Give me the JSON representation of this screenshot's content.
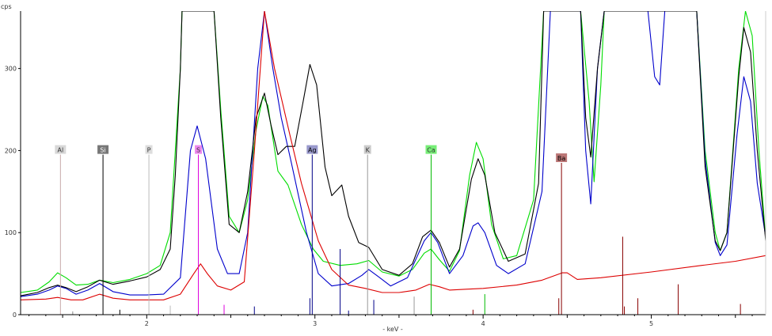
{
  "chart_data": {
    "type": "line",
    "xlabel": "- keV -",
    "ylabel": "cps",
    "xlim": [
      1.25,
      5.68
    ],
    "ylim": [
      0,
      370
    ],
    "x_ticks": [
      2,
      3,
      4,
      5
    ],
    "y_ticks": [
      0,
      100,
      200,
      300
    ],
    "grid": false,
    "series": [
      {
        "color": "#00dd00",
        "points": [
          [
            1.25,
            27
          ],
          [
            1.35,
            30
          ],
          [
            1.42,
            40
          ],
          [
            1.47,
            51
          ],
          [
            1.52,
            45
          ],
          [
            1.58,
            36
          ],
          [
            1.65,
            37
          ],
          [
            1.72,
            42
          ],
          [
            1.8,
            39
          ],
          [
            1.9,
            43
          ],
          [
            2.0,
            50
          ],
          [
            2.08,
            60
          ],
          [
            2.14,
            100
          ],
          [
            2.17,
            200
          ],
          [
            2.2,
            300
          ],
          [
            2.21,
            370
          ],
          [
            2.4,
            370
          ],
          [
            2.44,
            250
          ],
          [
            2.49,
            120
          ],
          [
            2.55,
            100
          ],
          [
            2.6,
            140
          ],
          [
            2.65,
            225
          ],
          [
            2.69,
            266
          ],
          [
            2.72,
            255
          ],
          [
            2.78,
            175
          ],
          [
            2.84,
            158
          ],
          [
            2.92,
            110
          ],
          [
            2.99,
            80
          ],
          [
            3.05,
            65
          ],
          [
            3.15,
            60
          ],
          [
            3.25,
            62
          ],
          [
            3.32,
            66
          ],
          [
            3.4,
            52
          ],
          [
            3.5,
            47
          ],
          [
            3.58,
            55
          ],
          [
            3.65,
            75
          ],
          [
            3.69,
            80
          ],
          [
            3.74,
            67
          ],
          [
            3.8,
            53
          ],
          [
            3.86,
            78
          ],
          [
            3.92,
            170
          ],
          [
            3.96,
            210
          ],
          [
            4.0,
            190
          ],
          [
            4.05,
            110
          ],
          [
            4.12,
            68
          ],
          [
            4.2,
            72
          ],
          [
            4.3,
            140
          ],
          [
            4.36,
            370
          ],
          [
            4.58,
            370
          ],
          [
            4.63,
            260
          ],
          [
            4.66,
            162
          ],
          [
            4.7,
            280
          ],
          [
            4.72,
            370
          ],
          [
            5.27,
            370
          ],
          [
            5.32,
            200
          ],
          [
            5.38,
            100
          ],
          [
            5.41,
            78
          ],
          [
            5.45,
            100
          ],
          [
            5.52,
            300
          ],
          [
            5.56,
            370
          ],
          [
            5.6,
            340
          ],
          [
            5.64,
            200
          ],
          [
            5.68,
            92
          ]
        ]
      },
      {
        "color": "#0000cc",
        "points": [
          [
            1.25,
            22
          ],
          [
            1.35,
            25
          ],
          [
            1.42,
            30
          ],
          [
            1.47,
            35
          ],
          [
            1.52,
            32
          ],
          [
            1.58,
            25
          ],
          [
            1.65,
            30
          ],
          [
            1.72,
            38
          ],
          [
            1.8,
            28
          ],
          [
            1.9,
            24
          ],
          [
            2.0,
            24
          ],
          [
            2.1,
            25
          ],
          [
            2.2,
            45
          ],
          [
            2.26,
            200
          ],
          [
            2.3,
            230
          ],
          [
            2.35,
            190
          ],
          [
            2.42,
            80
          ],
          [
            2.48,
            50
          ],
          [
            2.55,
            50
          ],
          [
            2.6,
            100
          ],
          [
            2.66,
            300
          ],
          [
            2.7,
            370
          ],
          [
            2.75,
            300
          ],
          [
            2.8,
            240
          ],
          [
            2.86,
            185
          ],
          [
            2.95,
            100
          ],
          [
            3.02,
            50
          ],
          [
            3.1,
            35
          ],
          [
            3.2,
            38
          ],
          [
            3.28,
            48
          ],
          [
            3.32,
            55
          ],
          [
            3.38,
            46
          ],
          [
            3.45,
            35
          ],
          [
            3.55,
            45
          ],
          [
            3.65,
            90
          ],
          [
            3.69,
            100
          ],
          [
            3.73,
            88
          ],
          [
            3.8,
            50
          ],
          [
            3.88,
            72
          ],
          [
            3.94,
            108
          ],
          [
            3.97,
            112
          ],
          [
            4.01,
            100
          ],
          [
            4.08,
            60
          ],
          [
            4.15,
            50
          ],
          [
            4.25,
            62
          ],
          [
            4.35,
            150
          ],
          [
            4.4,
            370
          ],
          [
            4.58,
            370
          ],
          [
            4.61,
            200
          ],
          [
            4.64,
            135
          ],
          [
            4.68,
            300
          ],
          [
            4.72,
            370
          ],
          [
            4.98,
            370
          ],
          [
            5.02,
            290
          ],
          [
            5.05,
            280
          ],
          [
            5.08,
            370
          ],
          [
            5.27,
            370
          ],
          [
            5.32,
            190
          ],
          [
            5.38,
            88
          ],
          [
            5.41,
            72
          ],
          [
            5.45,
            85
          ],
          [
            5.51,
            220
          ],
          [
            5.55,
            290
          ],
          [
            5.59,
            260
          ],
          [
            5.63,
            160
          ],
          [
            5.68,
            95
          ]
        ]
      },
      {
        "color": "#000000",
        "points": [
          [
            1.25,
            23
          ],
          [
            1.35,
            27
          ],
          [
            1.42,
            33
          ],
          [
            1.47,
            36
          ],
          [
            1.52,
            33
          ],
          [
            1.58,
            28
          ],
          [
            1.65,
            34
          ],
          [
            1.72,
            42
          ],
          [
            1.8,
            37
          ],
          [
            1.9,
            41
          ],
          [
            2.0,
            46
          ],
          [
            2.08,
            55
          ],
          [
            2.14,
            80
          ],
          [
            2.17,
            170
          ],
          [
            2.2,
            300
          ],
          [
            2.21,
            370
          ],
          [
            2.4,
            370
          ],
          [
            2.44,
            240
          ],
          [
            2.49,
            110
          ],
          [
            2.55,
            100
          ],
          [
            2.6,
            150
          ],
          [
            2.65,
            240
          ],
          [
            2.7,
            270
          ],
          [
            2.74,
            230
          ],
          [
            2.78,
            195
          ],
          [
            2.83,
            205
          ],
          [
            2.88,
            205
          ],
          [
            2.93,
            260
          ],
          [
            2.97,
            305
          ],
          [
            3.01,
            280
          ],
          [
            3.06,
            180
          ],
          [
            3.1,
            145
          ],
          [
            3.16,
            158
          ],
          [
            3.2,
            120
          ],
          [
            3.26,
            88
          ],
          [
            3.32,
            82
          ],
          [
            3.4,
            55
          ],
          [
            3.5,
            48
          ],
          [
            3.58,
            62
          ],
          [
            3.64,
            95
          ],
          [
            3.69,
            103
          ],
          [
            3.74,
            88
          ],
          [
            3.8,
            58
          ],
          [
            3.86,
            80
          ],
          [
            3.93,
            165
          ],
          [
            3.97,
            190
          ],
          [
            4.01,
            170
          ],
          [
            4.07,
            100
          ],
          [
            4.15,
            65
          ],
          [
            4.25,
            74
          ],
          [
            4.33,
            160
          ],
          [
            4.36,
            370
          ],
          [
            4.58,
            370
          ],
          [
            4.61,
            240
          ],
          [
            4.64,
            192
          ],
          [
            4.68,
            300
          ],
          [
            4.72,
            370
          ],
          [
            5.27,
            370
          ],
          [
            5.32,
            180
          ],
          [
            5.38,
            90
          ],
          [
            5.41,
            78
          ],
          [
            5.45,
            100
          ],
          [
            5.52,
            290
          ],
          [
            5.55,
            350
          ],
          [
            5.59,
            320
          ],
          [
            5.63,
            200
          ],
          [
            5.68,
            90
          ]
        ]
      },
      {
        "color": "#dd0000",
        "points": [
          [
            1.25,
            18
          ],
          [
            1.4,
            19
          ],
          [
            1.47,
            21
          ],
          [
            1.55,
            18
          ],
          [
            1.62,
            18
          ],
          [
            1.72,
            25
          ],
          [
            1.8,
            20
          ],
          [
            1.9,
            18
          ],
          [
            2.0,
            18
          ],
          [
            2.1,
            18
          ],
          [
            2.2,
            25
          ],
          [
            2.28,
            50
          ],
          [
            2.32,
            62
          ],
          [
            2.36,
            50
          ],
          [
            2.42,
            35
          ],
          [
            2.5,
            30
          ],
          [
            2.58,
            40
          ],
          [
            2.64,
            200
          ],
          [
            2.7,
            370
          ],
          [
            2.76,
            300
          ],
          [
            2.85,
            220
          ],
          [
            2.92,
            160
          ],
          [
            3.02,
            90
          ],
          [
            3.1,
            55
          ],
          [
            3.2,
            36
          ],
          [
            3.3,
            32
          ],
          [
            3.4,
            27
          ],
          [
            3.5,
            27
          ],
          [
            3.6,
            30
          ],
          [
            3.68,
            37
          ],
          [
            3.74,
            34
          ],
          [
            3.8,
            30
          ],
          [
            3.9,
            31
          ],
          [
            4.0,
            32
          ],
          [
            4.2,
            36
          ],
          [
            4.35,
            42
          ],
          [
            4.47,
            51
          ],
          [
            4.5,
            51
          ],
          [
            4.56,
            43
          ],
          [
            4.7,
            45
          ],
          [
            5.0,
            52
          ],
          [
            5.3,
            60
          ],
          [
            5.5,
            65
          ],
          [
            5.68,
            72
          ]
        ]
      }
    ],
    "element_markers": [
      {
        "label": "Al",
        "energy": 1.487,
        "height": 195,
        "color": "#c8a8a8",
        "box": "#d8d8d8",
        "text_color": "#333333"
      },
      {
        "label": "Si",
        "energy": 1.74,
        "height": 195,
        "color": "#000000",
        "box": "#777777",
        "text_color": "#ffffff"
      },
      {
        "label": "P",
        "energy": 2.013,
        "height": 195,
        "color": "#bbbbbb",
        "box": "#dddddd",
        "text_color": "#333333"
      },
      {
        "label": "S",
        "energy": 2.307,
        "height": 195,
        "color": "#dd00dd",
        "box": "#ee88ee",
        "text_color": "#333333"
      },
      {
        "label": "Ag",
        "energy": 2.984,
        "height": 195,
        "color": "#000088",
        "box": "#9999cc",
        "text_color": "#000000"
      },
      {
        "label": "K",
        "energy": 3.313,
        "height": 195,
        "color": "#999999",
        "box": "#cccccc",
        "text_color": "#333333"
      },
      {
        "label": "Ca",
        "energy": 3.691,
        "height": 195,
        "color": "#00bb00",
        "box": "#77ee77",
        "text_color": "#333333"
      },
      {
        "label": "Ba",
        "energy": 4.466,
        "height": 185,
        "color": "#880000",
        "box": "#bb7777",
        "text_color": "#000000"
      }
    ],
    "line_stubs": [
      {
        "energy": 1.56,
        "height": 4,
        "color": "#8a8a8a"
      },
      {
        "energy": 1.84,
        "height": 6,
        "color": "#000000"
      },
      {
        "energy": 2.14,
        "height": 11,
        "color": "#bbbbbb"
      },
      {
        "energy": 2.46,
        "height": 12,
        "color": "#dd00dd"
      },
      {
        "energy": 2.64,
        "height": 10,
        "color": "#000088"
      },
      {
        "energy": 2.97,
        "height": 20,
        "color": "#000088"
      },
      {
        "energy": 3.15,
        "height": 80,
        "color": "#000088"
      },
      {
        "energy": 3.2,
        "height": 5,
        "color": "#000088"
      },
      {
        "energy": 3.35,
        "height": 18,
        "color": "#000088"
      },
      {
        "energy": 3.59,
        "height": 22,
        "color": "#999999"
      },
      {
        "energy": 3.94,
        "height": 6,
        "color": "#880000"
      },
      {
        "energy": 4.01,
        "height": 25,
        "color": "#00bb00"
      },
      {
        "energy": 4.45,
        "height": 20,
        "color": "#880000"
      },
      {
        "energy": 4.83,
        "height": 95,
        "color": "#880000"
      },
      {
        "energy": 4.84,
        "height": 10,
        "color": "#880000"
      },
      {
        "energy": 4.92,
        "height": 20,
        "color": "#880000"
      },
      {
        "energy": 5.16,
        "height": 37,
        "color": "#880000"
      },
      {
        "energy": 5.53,
        "height": 13,
        "color": "#880000"
      }
    ]
  }
}
